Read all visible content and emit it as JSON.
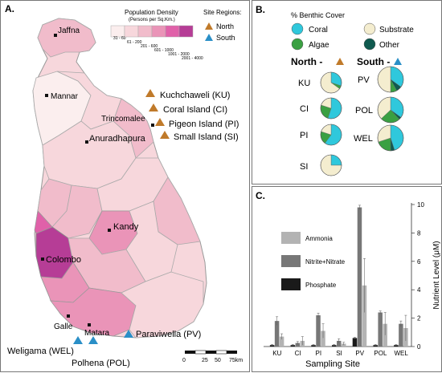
{
  "panels": {
    "a": {
      "label": "A."
    },
    "b": {
      "label": "B."
    },
    "c": {
      "label": "C."
    }
  },
  "map": {
    "legend_density_title": "Population Density",
    "legend_density_subtitle": "(Persons per Sq.Km.)",
    "density_bins": [
      {
        "label": "31 - 60",
        "color": "#fbeeee"
      },
      {
        "label": "61 - 200",
        "color": "#f7d7dc"
      },
      {
        "label": "201 - 600",
        "color": "#f1bccb"
      },
      {
        "label": "601 - 1000",
        "color": "#ea94b8"
      },
      {
        "label": "1001 - 2000",
        "color": "#e061a9"
      },
      {
        "label": "2001 - 4000",
        "color": "#b63d96"
      }
    ],
    "legend_regions_title": "Site Regions:",
    "region_north": "North",
    "region_south": "South",
    "color_north": "#c07a2a",
    "color_south": "#2a8fc7",
    "cities": [
      "Jaffna",
      "Mannar",
      "Trincomalee",
      "Anuradhapura",
      "Kandy",
      "Colombo",
      "Galle",
      "Matara"
    ],
    "sites": [
      {
        "label": "Kuchchaweli (KU)",
        "region": "north"
      },
      {
        "label": "Coral Island (CI)",
        "region": "north"
      },
      {
        "label": "Pigeon Island (PI)",
        "region": "north"
      },
      {
        "label": "Small Island (SI)",
        "region": "north"
      },
      {
        "label": "Paraviwella (PV)",
        "region": "south"
      },
      {
        "label": "Weligama (WEL)",
        "region": "south"
      },
      {
        "label": "Polhena (POL)",
        "region": "south"
      }
    ],
    "scale_ticks": [
      "0",
      "25",
      "50",
      "75km"
    ]
  },
  "benthic": {
    "title": "% Benthic Cover",
    "legend": [
      {
        "label": "Coral",
        "color": "#2fc8dc"
      },
      {
        "label": "Substrate",
        "color": "#f4edcf"
      },
      {
        "label": "Algae",
        "color": "#3aa042"
      },
      {
        "label": "Other",
        "color": "#0f5a4f"
      }
    ],
    "north_label": "North -",
    "south_label": "South -",
    "north_sites": [
      {
        "site": "KU",
        "coral": 30,
        "substrate": 65,
        "algae": 5,
        "other": 0
      },
      {
        "site": "CI",
        "coral": 55,
        "substrate": 20,
        "algae": 25,
        "other": 0
      },
      {
        "site": "PI",
        "coral": 60,
        "substrate": 20,
        "algae": 20,
        "other": 0
      },
      {
        "site": "SI",
        "coral": 25,
        "substrate": 75,
        "algae": 0,
        "other": 0
      }
    ],
    "south_sites": [
      {
        "site": "PV",
        "coral": 35,
        "substrate": 50,
        "algae": 8,
        "other": 7
      },
      {
        "site": "POL",
        "coral": 35,
        "substrate": 37,
        "algae": 25,
        "other": 3
      },
      {
        "site": "WEL",
        "coral": 45,
        "substrate": 30,
        "algae": 20,
        "other": 5
      }
    ]
  },
  "chart_data": {
    "type": "bar",
    "categories": [
      "KU",
      "CI",
      "PI",
      "SI",
      "PV",
      "POL",
      "WEL"
    ],
    "xlabel": "Sampling Site",
    "ylabel": "Nutrient Level (μM)",
    "ylim": [
      0,
      10
    ],
    "yticks": [
      "0",
      "2",
      "4",
      "6",
      "8",
      "10"
    ],
    "series": [
      {
        "name": "Phosphate",
        "color": "#1a1a1a",
        "values": [
          0.1,
          0.1,
          0.1,
          0.1,
          0.6,
          0.1,
          0.1
        ],
        "errors": [
          0.05,
          0.05,
          0.05,
          0.05,
          0.05,
          0.05,
          0.05
        ]
      },
      {
        "name": "Nitrite+Nitrate",
        "color": "#777777",
        "values": [
          1.8,
          0.25,
          2.2,
          0.4,
          9.8,
          2.4,
          1.6
        ],
        "errors": [
          0.3,
          0.1,
          0.15,
          0.15,
          0.15,
          0.1,
          0.2
        ]
      },
      {
        "name": "Ammonia",
        "color": "#b3b3b3",
        "values": [
          0.7,
          0.4,
          1.1,
          0.2,
          4.3,
          1.6,
          1.3
        ],
        "errors": [
          0.2,
          0.3,
          0.5,
          0.1,
          1.9,
          0.8,
          0.9
        ]
      }
    ],
    "legend_order": [
      "Ammonia",
      "Nitrite+Nitrate",
      "Phosphate"
    ],
    "legend_position": "top-left",
    "grid": false
  }
}
